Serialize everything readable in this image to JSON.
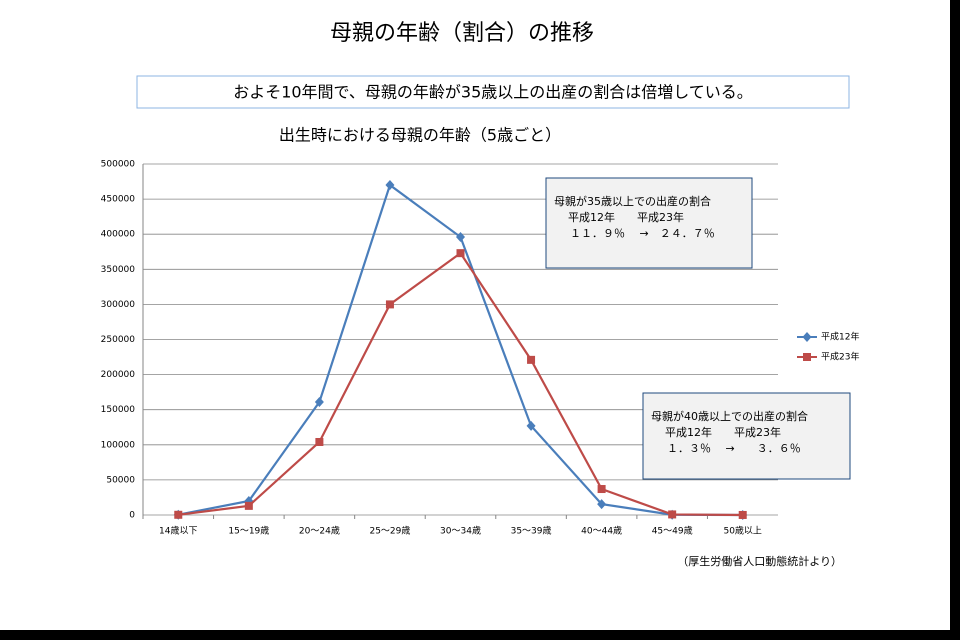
{
  "slide_title": "母親の年齢（割合）の推移",
  "summary": "およそ10年間で、母親の年齢が35歳以上の出産の割合は倍増している。",
  "source": "（厚生労働省人口動態統計より）",
  "chart_data": {
    "type": "line",
    "title": "出生時における母親の年齢（5歳ごと）",
    "categories": [
      "14歳以下",
      "15～19歳",
      "20～24歳",
      "25～29歳",
      "30～34歳",
      "35～39歳",
      "40～44歳",
      "45～49歳",
      "50歳以上"
    ],
    "series": [
      {
        "name": "平成12年",
        "color": "#4a7ebb",
        "marker": "diamond",
        "values": [
          400,
          20000,
          161000,
          470000,
          396000,
          127000,
          15500,
          400,
          10
        ]
      },
      {
        "name": "平成23年",
        "color": "#be4b48",
        "marker": "square",
        "values": [
          300,
          13000,
          104000,
          300000,
          373000,
          221000,
          37000,
          800,
          50
        ]
      }
    ],
    "ylim": [
      0,
      500000
    ],
    "yticks": [
      0,
      50000,
      100000,
      150000,
      200000,
      250000,
      300000,
      350000,
      400000,
      450000,
      500000
    ],
    "grid": true,
    "legend": "right",
    "annotations": [
      {
        "lines": [
          "母親が35歳以上での出産の割合",
          "平成12年　　平成23年",
          "１１．９％　 →　２４．７％"
        ]
      },
      {
        "lines": [
          "母親が40歳以上での出産の割合",
          "平成12年　　平成23年",
          "１．３％　 →　　３．６％"
        ]
      }
    ]
  }
}
